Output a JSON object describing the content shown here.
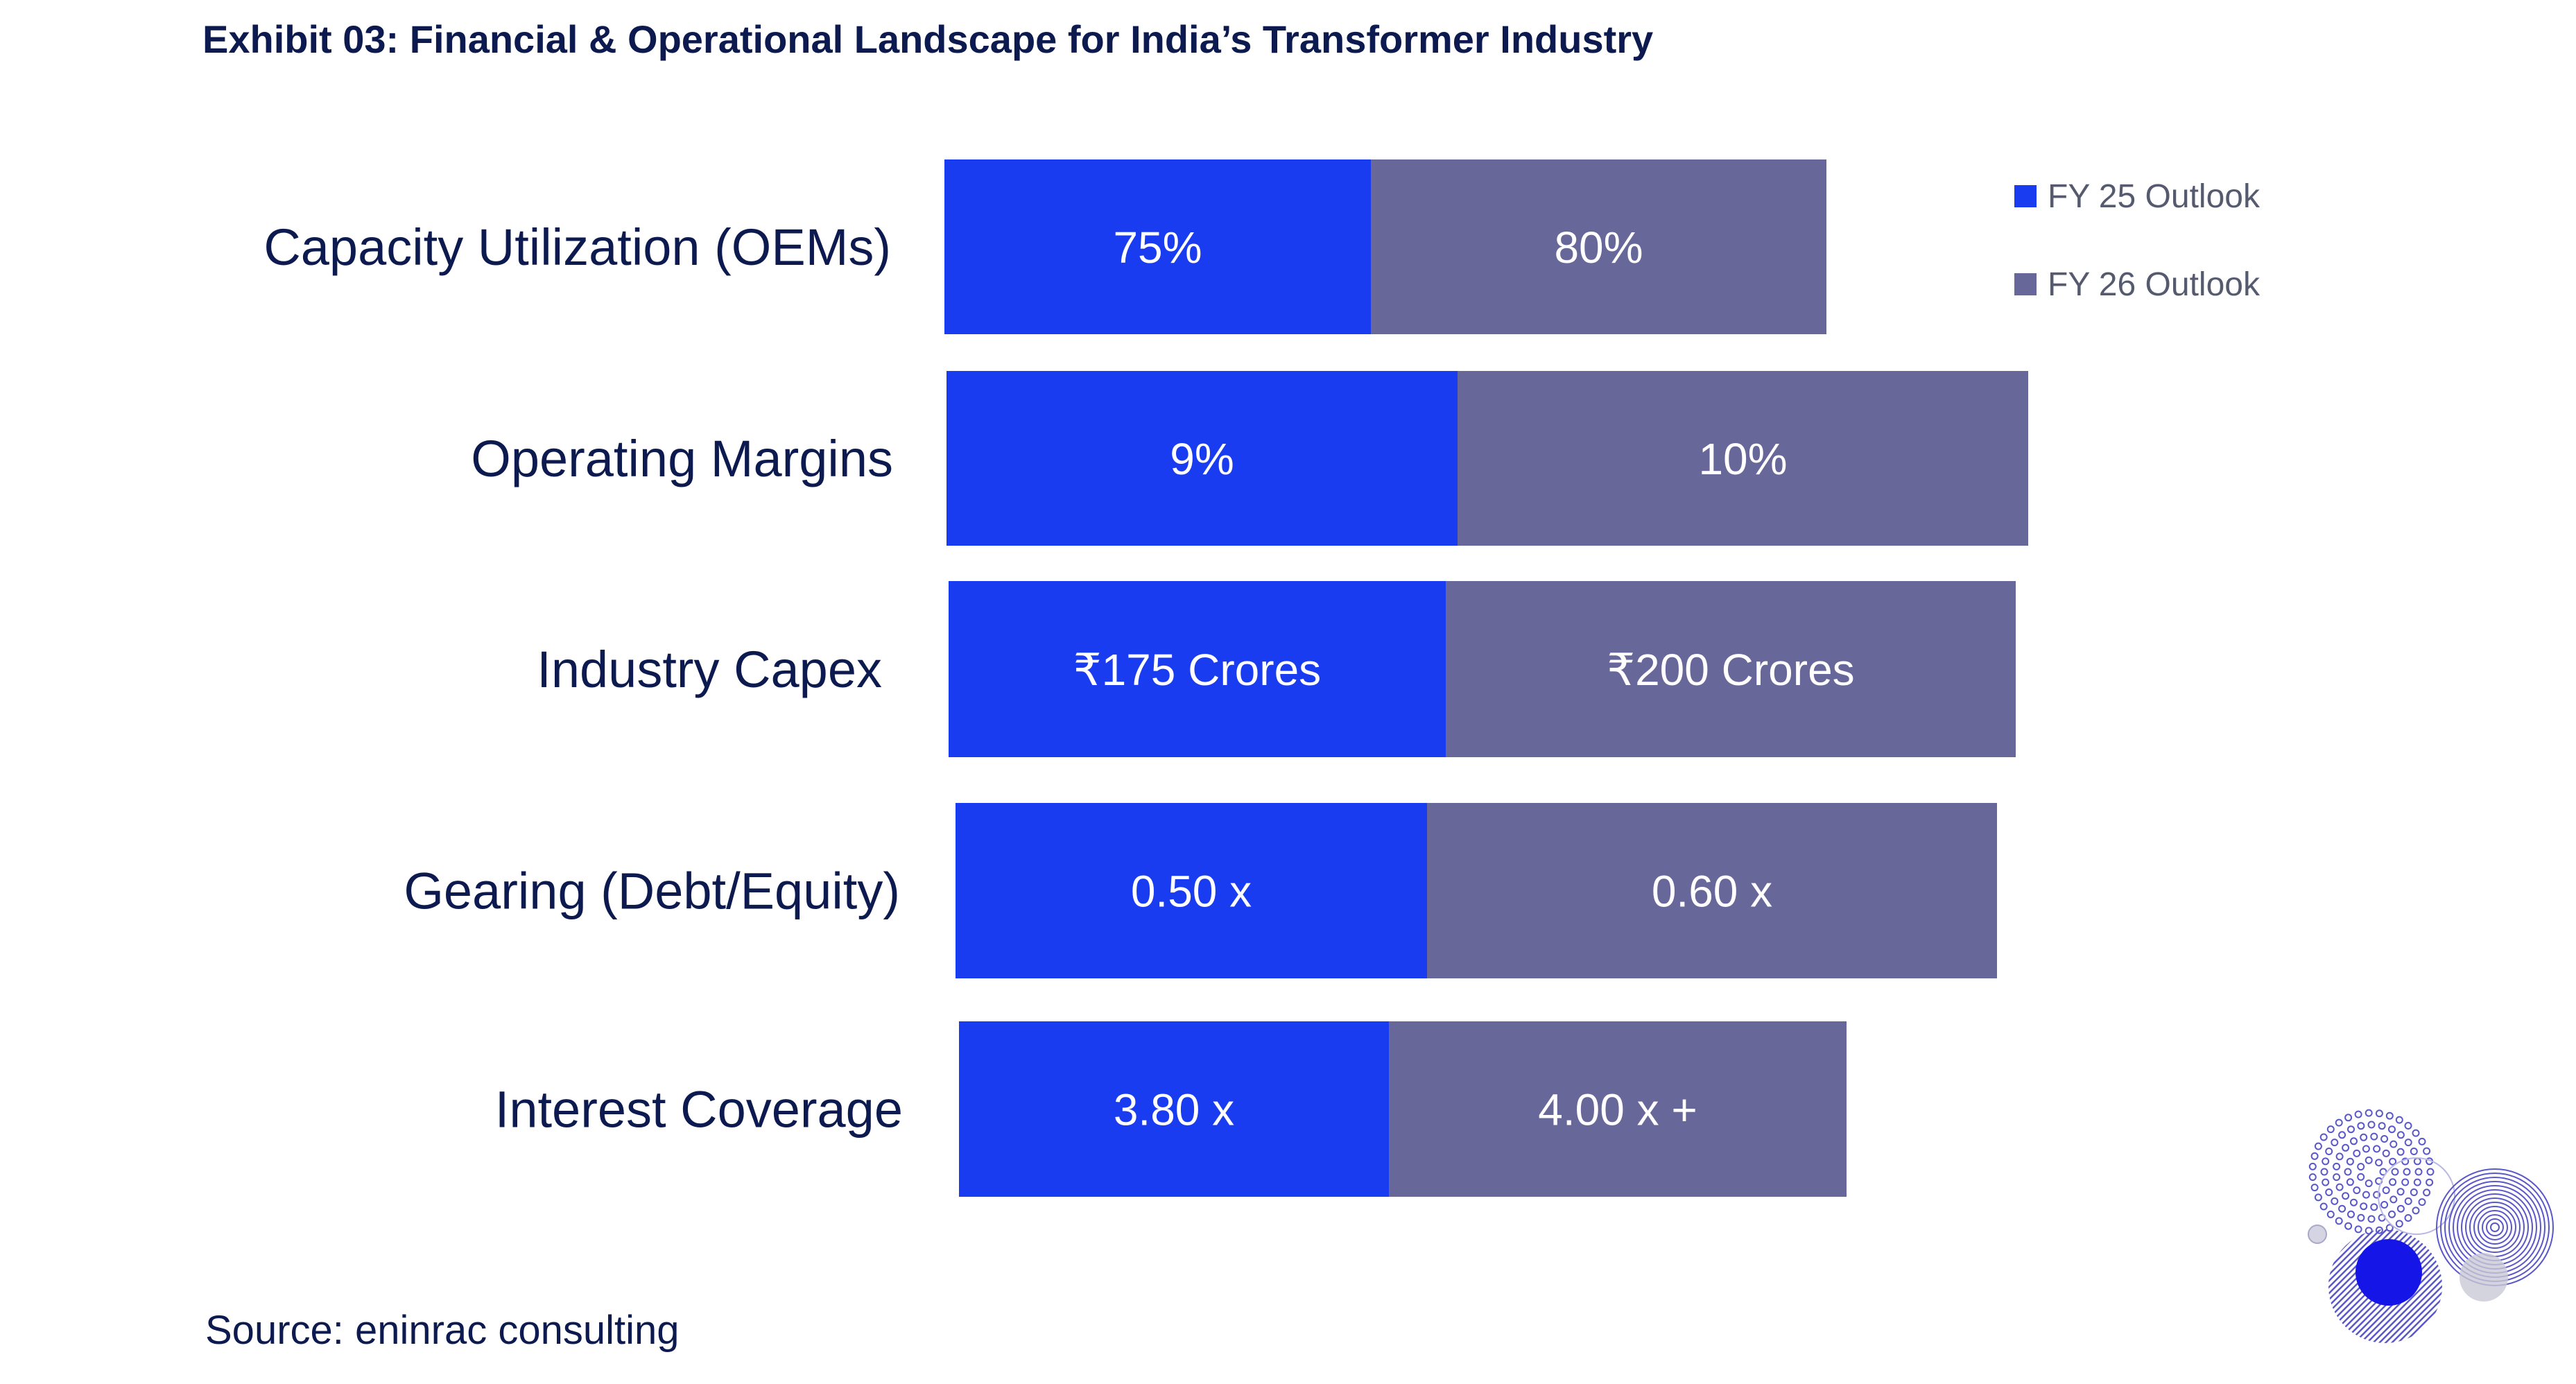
{
  "title": "Exhibit 03: Financial & Operational Landscape for India’s Transformer Industry",
  "source": "Source: eninrac consulting",
  "colors": {
    "fy25": "#1a3cf0",
    "fy26": "#68679a",
    "text": "#0c1a4f",
    "decor": "#5a58c8",
    "decor_dot": "#1515e8"
  },
  "chart_data": {
    "type": "bar",
    "orientation": "horizontal",
    "stacked": true,
    "categories": [
      "Capacity Utilization (OEMs)",
      "Operating Margins",
      "Industry Capex",
      "Gearing (Debt/Equity)",
      "Interest Coverage"
    ],
    "series": [
      {
        "name": "FY 25 Outlook",
        "labels": [
          "75%",
          "9%",
          "₹175 Crores",
          "0.50 x",
          "3.80 x"
        ]
      },
      {
        "name": "FY 26 Outlook",
        "labels": [
          "80%",
          "10%",
          "₹200 Crores",
          "0.60 x",
          "4.00 x +"
        ]
      }
    ],
    "legend": "top-right",
    "grid": false
  }
}
